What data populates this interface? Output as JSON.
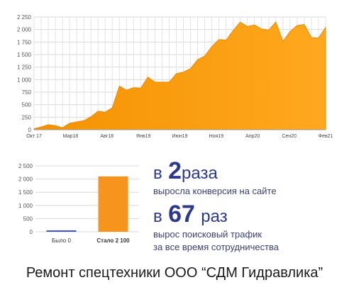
{
  "chart_data": [
    {
      "type": "area",
      "color": "#f7941d",
      "grid": true,
      "ylim": [
        0,
        2250
      ],
      "y_ticks": [
        "0",
        "250",
        "500",
        "750",
        "1 000",
        "1 250",
        "1 500",
        "1 750",
        "2 000",
        "2 250"
      ],
      "x_tick_labels": [
        "Окт 17",
        "Мар18",
        "Авг18",
        "Янв19",
        "Июн19",
        "Ноя19",
        "Апр20",
        "Сен20",
        "Фев21"
      ],
      "values": [
        20,
        55,
        100,
        80,
        40,
        130,
        155,
        180,
        260,
        370,
        350,
        440,
        870,
        790,
        840,
        830,
        1050,
        950,
        950,
        950,
        1120,
        1150,
        1220,
        1400,
        1470,
        1660,
        1800,
        1790,
        1980,
        2150,
        2060,
        2090,
        2010,
        1990,
        2150,
        1760,
        1960,
        2080,
        2100,
        1840,
        1830,
        2040
      ]
    },
    {
      "type": "bar",
      "ylim": [
        0,
        2500
      ],
      "y_ticks": [
        "0",
        "500",
        "1 000",
        "1 500",
        "2 000",
        "2 500"
      ],
      "categories": [
        "Было 0",
        "Стало 2 100"
      ],
      "values": [
        0,
        2100
      ],
      "colors": [
        "#3f55d1",
        "#f7941d"
      ]
    }
  ],
  "stats": {
    "first": {
      "prefix": "в",
      "number": "2",
      "suffix": "раза",
      "description": "выросла конверсия на сайте"
    },
    "second": {
      "prefix": "в",
      "number": "67",
      "suffix": "раз",
      "description_line1": "вырос поисковый трафик",
      "description_line2": "за все время сотрудничества"
    }
  },
  "caption": "Ремонт спецтехники ООО “СДМ Гидравлика”"
}
